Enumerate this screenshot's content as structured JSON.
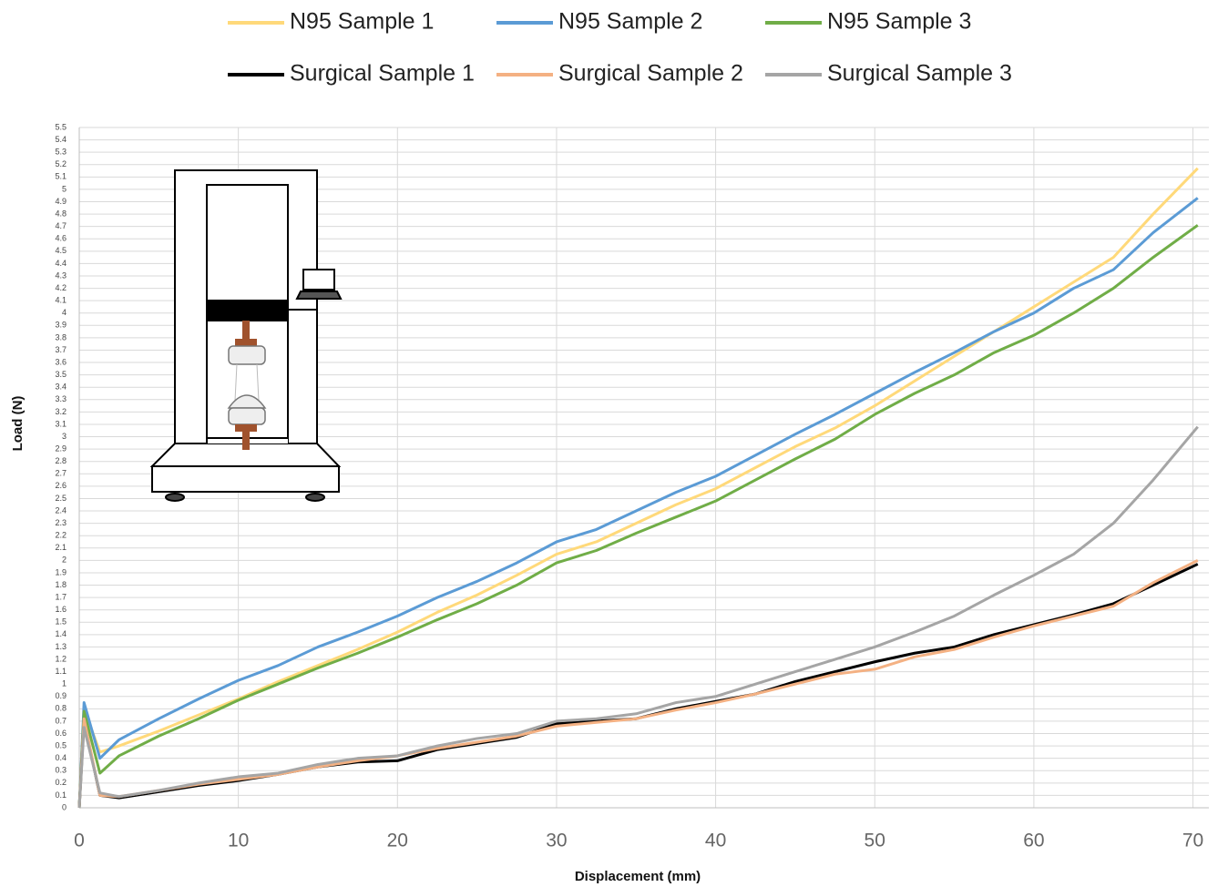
{
  "chart_data": {
    "type": "line",
    "x_label": "Displacement (mm)",
    "y_label": "Load (N)",
    "x": [
      0,
      0.3,
      1.3,
      2.5,
      5,
      7.5,
      10,
      12.5,
      15,
      17.5,
      20,
      22.5,
      25,
      27.5,
      30,
      32.5,
      35,
      37.5,
      40,
      42.5,
      45,
      47.5,
      50,
      52.5,
      55,
      57.5,
      60,
      62.5,
      65,
      67.5,
      70.3
    ],
    "series": [
      {
        "name": "N95 Sample 1",
        "color": "#ffd97a",
        "values": [
          0,
          0.8,
          0.45,
          0.5,
          0.62,
          0.75,
          0.88,
          1.02,
          1.15,
          1.28,
          1.42,
          1.58,
          1.72,
          1.88,
          2.05,
          2.15,
          2.3,
          2.45,
          2.58,
          2.75,
          2.92,
          3.07,
          3.25,
          3.45,
          3.65,
          3.85,
          4.05,
          4.25,
          4.45,
          4.8,
          5.17
        ]
      },
      {
        "name": "N95 Sample 2",
        "color": "#5b9bd5",
        "values": [
          0,
          0.85,
          0.4,
          0.55,
          0.72,
          0.88,
          1.03,
          1.15,
          1.3,
          1.42,
          1.55,
          1.7,
          1.83,
          1.98,
          2.15,
          2.25,
          2.4,
          2.55,
          2.68,
          2.85,
          3.02,
          3.18,
          3.35,
          3.52,
          3.68,
          3.85,
          4.0,
          4.2,
          4.35,
          4.65,
          4.93
        ]
      },
      {
        "name": "N95 Sample 3",
        "color": "#70ad47",
        "values": [
          0,
          0.78,
          0.28,
          0.42,
          0.58,
          0.72,
          0.87,
          1.0,
          1.13,
          1.25,
          1.38,
          1.52,
          1.65,
          1.8,
          1.98,
          2.08,
          2.22,
          2.35,
          2.48,
          2.65,
          2.82,
          2.98,
          3.18,
          3.35,
          3.5,
          3.68,
          3.82,
          4.0,
          4.2,
          4.45,
          4.71
        ]
      },
      {
        "name": "Surgical Sample 1",
        "color": "#000000",
        "values": [
          0,
          0.7,
          0.1,
          0.08,
          0.13,
          0.18,
          0.22,
          0.27,
          0.33,
          0.37,
          0.38,
          0.47,
          0.52,
          0.57,
          0.68,
          0.7,
          0.72,
          0.8,
          0.86,
          0.92,
          1.02,
          1.1,
          1.18,
          1.25,
          1.3,
          1.4,
          1.48,
          1.56,
          1.65,
          1.8,
          1.97
        ]
      },
      {
        "name": "Surgical Sample 2",
        "color": "#f4b183",
        "values": [
          0,
          0.72,
          0.1,
          0.09,
          0.14,
          0.19,
          0.23,
          0.27,
          0.33,
          0.38,
          0.42,
          0.48,
          0.53,
          0.58,
          0.66,
          0.69,
          0.72,
          0.79,
          0.85,
          0.92,
          1.0,
          1.08,
          1.12,
          1.22,
          1.28,
          1.38,
          1.47,
          1.55,
          1.63,
          1.82,
          2.0
        ]
      },
      {
        "name": "Surgical Sample 3",
        "color": "#a5a5a5",
        "values": [
          0,
          0.65,
          0.12,
          0.09,
          0.14,
          0.2,
          0.25,
          0.28,
          0.35,
          0.4,
          0.42,
          0.5,
          0.56,
          0.6,
          0.7,
          0.72,
          0.76,
          0.85,
          0.9,
          1.0,
          1.1,
          1.2,
          1.3,
          1.42,
          1.55,
          1.72,
          1.88,
          2.05,
          2.3,
          2.65,
          3.08
        ]
      }
    ],
    "xlim": [
      0,
      71
    ],
    "xticks": [
      0,
      10,
      20,
      30,
      40,
      50,
      60,
      70
    ],
    "ylim": [
      0,
      5.5
    ],
    "yticks": [
      0,
      0.1,
      0.2,
      0.3,
      0.4,
      0.5,
      0.6,
      0.7,
      0.8,
      0.9,
      1,
      1.1,
      1.2,
      1.3,
      1.4,
      1.5,
      1.6,
      1.7,
      1.8,
      1.9,
      2,
      2.1,
      2.2,
      2.3,
      2.4,
      2.5,
      2.6,
      2.7,
      2.8,
      2.9,
      3,
      3.1,
      3.2,
      3.3,
      3.4,
      3.5,
      3.6,
      3.7,
      3.8,
      3.9,
      4,
      4.1,
      4.2,
      4.3,
      4.4,
      4.5,
      4.6,
      4.7,
      4.8,
      4.9,
      5,
      5.1,
      5.2,
      5.3,
      5.4,
      5.5
    ],
    "grid": true,
    "legend": "top"
  }
}
